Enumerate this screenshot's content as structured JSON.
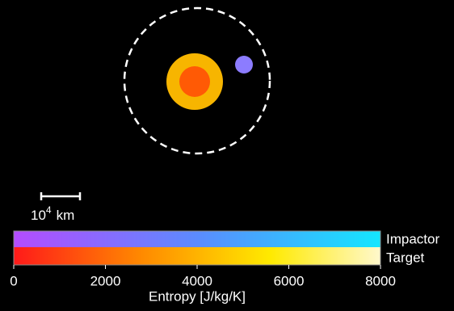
{
  "scale_bar": {
    "base": "10",
    "exponent": "4",
    "unit": "km"
  },
  "colorbar": {
    "rows": [
      "Impactor",
      "Target"
    ],
    "label": "Entropy [J/kg/K]",
    "xlim": [
      0,
      8000
    ],
    "xticks": [
      0,
      2000,
      4000,
      6000,
      8000
    ]
  }
}
